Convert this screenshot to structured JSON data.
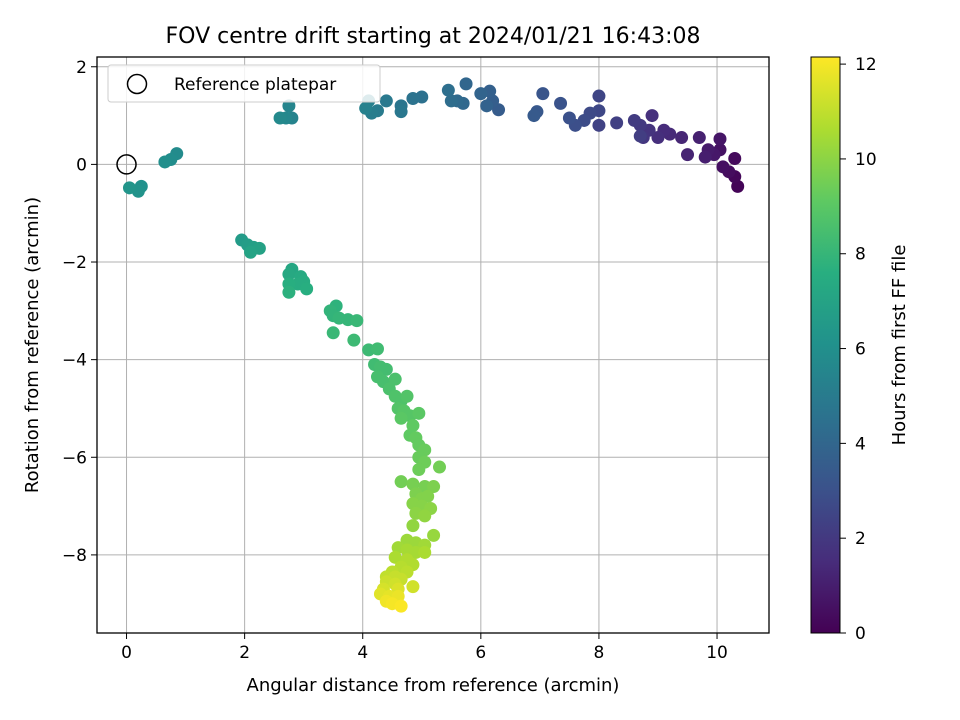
{
  "chart_data": {
    "type": "scatter",
    "title": "FOV centre drift starting at 2024/01/21 16:43:08",
    "xlabel": "Angular distance from reference (arcmin)",
    "ylabel": "Rotation from reference (arcmin)",
    "xlim": [
      -0.5,
      10.88
    ],
    "ylim": [
      -9.6,
      2.2
    ],
    "xticks": [
      0,
      2,
      4,
      6,
      8,
      10
    ],
    "yticks": [
      -8,
      -6,
      -4,
      -2,
      0,
      2
    ],
    "grid": true,
    "legend": {
      "placement": "upper-left",
      "entries": [
        "Reference platepar"
      ]
    },
    "reference_point": {
      "x": 0,
      "y": 0
    },
    "colorbar": {
      "label": "Hours from first FF file",
      "range": [
        0,
        12.15
      ],
      "ticks": [
        0,
        2,
        4,
        6,
        8,
        10,
        12
      ],
      "colormap": "viridis"
    },
    "points": [
      {
        "x": 10.35,
        "y": -0.45,
        "t": 0.1
      },
      {
        "x": 10.3,
        "y": -0.25,
        "t": 0.2
      },
      {
        "x": 10.3,
        "y": 0.12,
        "t": 0.3
      },
      {
        "x": 10.2,
        "y": -0.15,
        "t": 0.4
      },
      {
        "x": 10.1,
        "y": -0.05,
        "t": 0.5
      },
      {
        "x": 10.05,
        "y": 0.3,
        "t": 0.6
      },
      {
        "x": 10.05,
        "y": 0.52,
        "t": 0.7
      },
      {
        "x": 9.95,
        "y": 0.2,
        "t": 0.8
      },
      {
        "x": 9.85,
        "y": 0.3,
        "t": 0.9
      },
      {
        "x": 9.8,
        "y": 0.15,
        "t": 1.0
      },
      {
        "x": 9.7,
        "y": 0.55,
        "t": 1.1
      },
      {
        "x": 9.5,
        "y": 0.2,
        "t": 1.2
      },
      {
        "x": 9.4,
        "y": 0.55,
        "t": 1.3
      },
      {
        "x": 9.2,
        "y": 0.62,
        "t": 1.4
      },
      {
        "x": 9.1,
        "y": 0.7,
        "t": 1.5
      },
      {
        "x": 9.0,
        "y": 0.55,
        "t": 1.6
      },
      {
        "x": 8.9,
        "y": 1.0,
        "t": 1.7
      },
      {
        "x": 8.85,
        "y": 0.7,
        "t": 1.8
      },
      {
        "x": 8.75,
        "y": 0.55,
        "t": 1.9
      },
      {
        "x": 8.7,
        "y": 0.8,
        "t": 2.0
      },
      {
        "x": 8.6,
        "y": 0.9,
        "t": 2.1
      },
      {
        "x": 8.7,
        "y": 0.58,
        "t": 2.2
      },
      {
        "x": 8.3,
        "y": 0.85,
        "t": 2.3
      },
      {
        "x": 8.0,
        "y": 0.8,
        "t": 2.4
      },
      {
        "x": 8.0,
        "y": 1.4,
        "t": 2.5
      },
      {
        "x": 8.0,
        "y": 1.1,
        "t": 2.6
      },
      {
        "x": 7.85,
        "y": 1.05,
        "t": 2.7
      },
      {
        "x": 7.75,
        "y": 0.9,
        "t": 2.8
      },
      {
        "x": 7.6,
        "y": 0.8,
        "t": 2.9
      },
      {
        "x": 7.5,
        "y": 0.95,
        "t": 3.0
      },
      {
        "x": 7.35,
        "y": 1.25,
        "t": 3.1
      },
      {
        "x": 7.05,
        "y": 1.45,
        "t": 3.2
      },
      {
        "x": 6.95,
        "y": 1.08,
        "t": 3.3
      },
      {
        "x": 6.9,
        "y": 1.0,
        "t": 3.4
      },
      {
        "x": 6.3,
        "y": 1.12,
        "t": 3.5
      },
      {
        "x": 6.2,
        "y": 1.3,
        "t": 3.6
      },
      {
        "x": 6.15,
        "y": 1.5,
        "t": 3.7
      },
      {
        "x": 6.1,
        "y": 1.2,
        "t": 3.8
      },
      {
        "x": 6.0,
        "y": 1.45,
        "t": 3.9
      },
      {
        "x": 5.75,
        "y": 1.65,
        "t": 4.0
      },
      {
        "x": 5.7,
        "y": 1.25,
        "t": 4.1
      },
      {
        "x": 5.6,
        "y": 1.3,
        "t": 4.2
      },
      {
        "x": 5.5,
        "y": 1.3,
        "t": 4.3
      },
      {
        "x": 5.45,
        "y": 1.52,
        "t": 4.4
      },
      {
        "x": 5.0,
        "y": 1.38,
        "t": 4.5
      },
      {
        "x": 4.85,
        "y": 1.35,
        "t": 4.6
      },
      {
        "x": 4.65,
        "y": 1.2,
        "t": 4.7
      },
      {
        "x": 4.65,
        "y": 1.08,
        "t": 4.8
      },
      {
        "x": 4.4,
        "y": 1.3,
        "t": 4.9
      },
      {
        "x": 4.25,
        "y": 1.1,
        "t": 5.0
      },
      {
        "x": 4.15,
        "y": 1.05,
        "t": 5.1
      },
      {
        "x": 4.1,
        "y": 1.3,
        "t": 5.2
      },
      {
        "x": 4.05,
        "y": 1.15,
        "t": 5.3
      },
      {
        "x": 2.8,
        "y": 0.95,
        "t": 5.4
      },
      {
        "x": 2.75,
        "y": 1.2,
        "t": 5.5
      },
      {
        "x": 2.7,
        "y": 0.95,
        "t": 5.6
      },
      {
        "x": 2.6,
        "y": 0.95,
        "t": 5.7
      },
      {
        "x": 0.85,
        "y": 0.22,
        "t": 5.8
      },
      {
        "x": 0.75,
        "y": 0.1,
        "t": 5.9
      },
      {
        "x": 0.65,
        "y": 0.05,
        "t": 6.0
      },
      {
        "x": 0.25,
        "y": -0.45,
        "t": 6.1
      },
      {
        "x": 0.2,
        "y": -0.55,
        "t": 6.2
      },
      {
        "x": 0.05,
        "y": -0.48,
        "t": 6.3
      },
      {
        "x": 1.95,
        "y": -1.55,
        "t": 6.6
      },
      {
        "x": 2.05,
        "y": -1.65,
        "t": 6.7
      },
      {
        "x": 2.15,
        "y": -1.7,
        "t": 6.8
      },
      {
        "x": 2.25,
        "y": -1.72,
        "t": 6.9
      },
      {
        "x": 2.1,
        "y": -1.8,
        "t": 7.0
      },
      {
        "x": 2.8,
        "y": -2.15,
        "t": 7.2
      },
      {
        "x": 2.75,
        "y": -2.25,
        "t": 7.3
      },
      {
        "x": 2.95,
        "y": -2.3,
        "t": 7.4
      },
      {
        "x": 3.0,
        "y": -2.4,
        "t": 7.5
      },
      {
        "x": 2.9,
        "y": -2.45,
        "t": 7.5
      },
      {
        "x": 2.75,
        "y": -2.45,
        "t": 7.6
      },
      {
        "x": 3.05,
        "y": -2.55,
        "t": 7.6
      },
      {
        "x": 2.75,
        "y": -2.62,
        "t": 7.7
      },
      {
        "x": 3.55,
        "y": -2.9,
        "t": 7.8
      },
      {
        "x": 3.45,
        "y": -3.0,
        "t": 7.9
      },
      {
        "x": 3.5,
        "y": -3.1,
        "t": 7.9
      },
      {
        "x": 3.6,
        "y": -3.15,
        "t": 8.0
      },
      {
        "x": 3.75,
        "y": -3.18,
        "t": 8.0
      },
      {
        "x": 3.9,
        "y": -3.2,
        "t": 8.1
      },
      {
        "x": 3.5,
        "y": -3.45,
        "t": 8.1
      },
      {
        "x": 3.85,
        "y": -3.6,
        "t": 8.2
      },
      {
        "x": 4.1,
        "y": -3.8,
        "t": 8.2
      },
      {
        "x": 4.25,
        "y": -3.78,
        "t": 8.3
      },
      {
        "x": 4.2,
        "y": -4.1,
        "t": 8.3
      },
      {
        "x": 4.3,
        "y": -4.15,
        "t": 8.4
      },
      {
        "x": 4.4,
        "y": -4.2,
        "t": 8.4
      },
      {
        "x": 4.25,
        "y": -4.35,
        "t": 8.5
      },
      {
        "x": 4.35,
        "y": -4.45,
        "t": 8.5
      },
      {
        "x": 4.55,
        "y": -4.4,
        "t": 8.6
      },
      {
        "x": 4.45,
        "y": -4.6,
        "t": 8.6
      },
      {
        "x": 4.55,
        "y": -4.75,
        "t": 8.7
      },
      {
        "x": 4.65,
        "y": -4.85,
        "t": 8.7
      },
      {
        "x": 4.75,
        "y": -4.75,
        "t": 8.8
      },
      {
        "x": 4.6,
        "y": -5.0,
        "t": 8.8
      },
      {
        "x": 4.7,
        "y": -5.05,
        "t": 8.9
      },
      {
        "x": 4.8,
        "y": -5.15,
        "t": 8.9
      },
      {
        "x": 4.65,
        "y": -5.2,
        "t": 9.0
      },
      {
        "x": 4.95,
        "y": -5.1,
        "t": 9.0
      },
      {
        "x": 4.85,
        "y": -5.35,
        "t": 9.1
      },
      {
        "x": 4.8,
        "y": -5.55,
        "t": 9.1
      },
      {
        "x": 4.9,
        "y": -5.6,
        "t": 9.2
      },
      {
        "x": 4.95,
        "y": -5.75,
        "t": 9.2
      },
      {
        "x": 5.05,
        "y": -5.85,
        "t": 9.3
      },
      {
        "x": 4.95,
        "y": -6.0,
        "t": 9.3
      },
      {
        "x": 5.05,
        "y": -6.1,
        "t": 9.4
      },
      {
        "x": 4.95,
        "y": -6.25,
        "t": 9.4
      },
      {
        "x": 5.3,
        "y": -6.2,
        "t": 9.5
      },
      {
        "x": 4.65,
        "y": -6.5,
        "t": 9.5
      },
      {
        "x": 4.85,
        "y": -6.55,
        "t": 9.6
      },
      {
        "x": 5.05,
        "y": -6.6,
        "t": 9.6
      },
      {
        "x": 5.2,
        "y": -6.6,
        "t": 9.7
      },
      {
        "x": 4.9,
        "y": -6.75,
        "t": 9.7
      },
      {
        "x": 5.0,
        "y": -6.85,
        "t": 9.8
      },
      {
        "x": 5.1,
        "y": -6.8,
        "t": 9.8
      },
      {
        "x": 4.85,
        "y": -6.95,
        "t": 9.9
      },
      {
        "x": 5.0,
        "y": -7.0,
        "t": 9.9
      },
      {
        "x": 5.15,
        "y": -7.05,
        "t": 10.0
      },
      {
        "x": 4.9,
        "y": -7.15,
        "t": 10.0
      },
      {
        "x": 5.05,
        "y": -7.2,
        "t": 10.1
      },
      {
        "x": 4.85,
        "y": -7.4,
        "t": 10.1
      },
      {
        "x": 5.2,
        "y": -7.6,
        "t": 10.2
      },
      {
        "x": 4.75,
        "y": -7.7,
        "t": 10.3
      },
      {
        "x": 4.9,
        "y": -7.75,
        "t": 10.3
      },
      {
        "x": 5.05,
        "y": -7.8,
        "t": 10.4
      },
      {
        "x": 4.6,
        "y": -7.85,
        "t": 10.4
      },
      {
        "x": 4.75,
        "y": -7.9,
        "t": 10.5
      },
      {
        "x": 4.9,
        "y": -7.95,
        "t": 10.5
      },
      {
        "x": 5.05,
        "y": -7.95,
        "t": 10.6
      },
      {
        "x": 4.55,
        "y": -8.05,
        "t": 10.6
      },
      {
        "x": 4.75,
        "y": -8.1,
        "t": 10.7
      },
      {
        "x": 4.85,
        "y": -8.2,
        "t": 10.7
      },
      {
        "x": 4.65,
        "y": -8.25,
        "t": 10.8
      },
      {
        "x": 4.5,
        "y": -8.35,
        "t": 10.9
      },
      {
        "x": 4.75,
        "y": -8.35,
        "t": 10.9
      },
      {
        "x": 4.4,
        "y": -8.45,
        "t": 11.0
      },
      {
        "x": 4.55,
        "y": -8.45,
        "t": 11.1
      },
      {
        "x": 4.65,
        "y": -8.5,
        "t": 11.1
      },
      {
        "x": 4.4,
        "y": -8.55,
        "t": 11.2
      },
      {
        "x": 4.55,
        "y": -8.6,
        "t": 11.3
      },
      {
        "x": 4.85,
        "y": -8.65,
        "t": 11.3
      },
      {
        "x": 4.35,
        "y": -8.7,
        "t": 11.4
      },
      {
        "x": 4.6,
        "y": -8.7,
        "t": 11.5
      },
      {
        "x": 4.3,
        "y": -8.8,
        "t": 11.6
      },
      {
        "x": 4.45,
        "y": -8.85,
        "t": 11.7
      },
      {
        "x": 4.6,
        "y": -8.85,
        "t": 11.8
      },
      {
        "x": 4.4,
        "y": -8.95,
        "t": 11.9
      },
      {
        "x": 4.5,
        "y": -9.0,
        "t": 12.0
      },
      {
        "x": 4.65,
        "y": -9.05,
        "t": 12.1
      }
    ]
  }
}
